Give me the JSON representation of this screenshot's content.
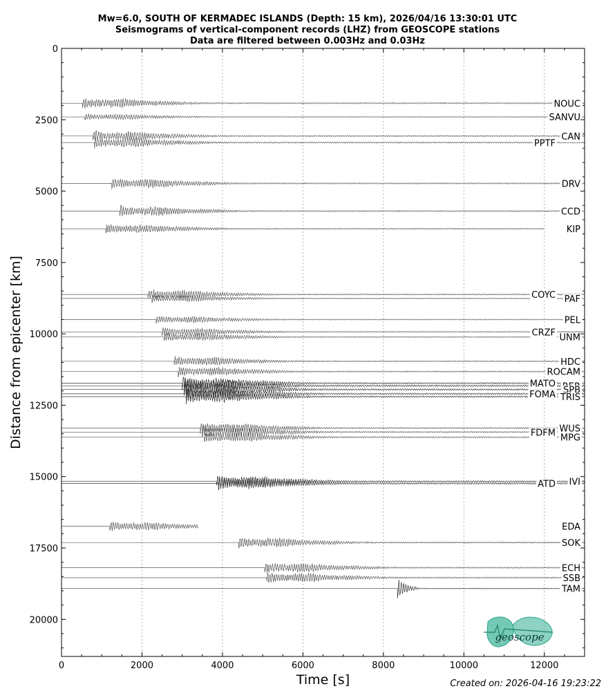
{
  "chart_data": {
    "type": "seismogram",
    "title_lines": [
      "Mw=6.0, SOUTH OF KERMADEC ISLANDS (Depth: 15 km), 2026/04/16 13:30:01 UTC",
      "Seismograms of vertical-component records (LHZ) from GEOSCOPE stations",
      "Data are filtered between 0.003Hz and 0.03Hz"
    ],
    "xlabel": "Time [s]",
    "ylabel": "Distance from epicenter [km]",
    "xlim": [
      0,
      13000
    ],
    "ylim": [
      21300,
      0
    ],
    "xticks": [
      0,
      2000,
      4000,
      6000,
      8000,
      10000,
      12000
    ],
    "yticks": [
      0,
      2500,
      5000,
      7500,
      10000,
      12500,
      15000,
      17500,
      20000
    ],
    "grid": "vertical dotted",
    "traces": [
      {
        "station": "NOUC",
        "distance": 1920,
        "arrival": 520,
        "end": 13000,
        "amp": 1,
        "label_side": "right"
      },
      {
        "station": "SANVU",
        "distance": 2400,
        "arrival": 580,
        "end": 13000,
        "amp": 0.6,
        "label_side": "right"
      },
      {
        "station": "CAN",
        "distance": 3070,
        "arrival": 780,
        "end": 13000,
        "amp": 1,
        "label_side": "right"
      },
      {
        "station": "PPTF",
        "distance": 3300,
        "arrival": 820,
        "end": 13000,
        "amp": 1,
        "label_side": "left"
      },
      {
        "station": "DRV",
        "distance": 4730,
        "arrival": 1250,
        "end": 13000,
        "amp": 1,
        "label_side": "right"
      },
      {
        "station": "CCD",
        "distance": 5700,
        "arrival": 1450,
        "end": 13000,
        "amp": 1,
        "label_side": "right"
      },
      {
        "station": "KIP",
        "distance": 6320,
        "arrival": 1100,
        "end": 12000,
        "amp": 0.9,
        "label_side": "right"
      },
      {
        "station": "COYC",
        "distance": 8620,
        "arrival": 2150,
        "end": 13000,
        "amp": 0.9,
        "label_side": "left"
      },
      {
        "station": "PAF",
        "distance": 8760,
        "arrival": 2250,
        "end": 13000,
        "amp": 0.7,
        "label_side": "right"
      },
      {
        "station": "PEL",
        "distance": 9500,
        "arrival": 2350,
        "end": 13000,
        "amp": 0.7,
        "label_side": "right"
      },
      {
        "station": "CRZF",
        "distance": 9930,
        "arrival": 2500,
        "end": 13000,
        "amp": 0.8,
        "label_side": "left"
      },
      {
        "station": "UNM",
        "distance": 10110,
        "arrival": 2550,
        "end": 13000,
        "amp": 0.8,
        "label_side": "right"
      },
      {
        "station": "HDC",
        "distance": 10960,
        "arrival": 2800,
        "end": 13000,
        "amp": 0.9,
        "label_side": "right"
      },
      {
        "station": "ROCAM",
        "distance": 11320,
        "arrival": 2900,
        "end": 13000,
        "amp": 0.9,
        "label_side": "right"
      },
      {
        "station": "MATO",
        "distance": 11730,
        "arrival": 3000,
        "end": 13000,
        "amp": 1.2,
        "label_side": "left"
      },
      {
        "station": "RER",
        "distance": 11820,
        "arrival": 3050,
        "end": 13000,
        "amp": 1.3,
        "label_side": "right"
      },
      {
        "station": "SPB",
        "distance": 11950,
        "arrival": 3050,
        "end": 13000,
        "amp": 1.3,
        "label_side": "right"
      },
      {
        "station": "FOMA",
        "distance": 12100,
        "arrival": 3100,
        "end": 13000,
        "amp": 1.2,
        "label_side": "left"
      },
      {
        "station": "TRIS",
        "distance": 12200,
        "arrival": 3100,
        "end": 13000,
        "amp": 1.2,
        "label_side": "right"
      },
      {
        "station": "WUS",
        "distance": 13300,
        "arrival": 3450,
        "end": 13000,
        "amp": 1,
        "label_side": "right"
      },
      {
        "station": "FDFM",
        "distance": 13440,
        "arrival": 3500,
        "end": 13000,
        "amp": 1,
        "label_side": "left"
      },
      {
        "station": "MPG",
        "distance": 13620,
        "arrival": 3550,
        "end": 13000,
        "amp": 1,
        "label_side": "right"
      },
      {
        "station": "IVI",
        "distance": 15170,
        "arrival": 3850,
        "end": 13000,
        "amp": 1.2,
        "label_side": "right"
      },
      {
        "station": "ATD",
        "distance": 15240,
        "arrival": 3900,
        "end": 13000,
        "amp": 1.2,
        "label_side": "left"
      },
      {
        "station": "EDA",
        "distance": 16740,
        "arrival": 1200,
        "end": 3400,
        "amp": 0.9,
        "label_side": "right"
      },
      {
        "station": "SOK",
        "distance": 17310,
        "arrival": 4400,
        "end": 13000,
        "amp": 1,
        "label_side": "right"
      },
      {
        "station": "ECH",
        "distance": 18190,
        "arrival": 5050,
        "end": 13000,
        "amp": 1,
        "label_side": "right"
      },
      {
        "station": "SSB",
        "distance": 18540,
        "arrival": 5100,
        "end": 13000,
        "amp": 1,
        "label_side": "right"
      },
      {
        "station": "TAM",
        "distance": 18920,
        "arrival": 8350,
        "end": 13000,
        "amp": 1.5,
        "label_side": "right"
      }
    ]
  },
  "logo": {
    "text": "geoscope",
    "color": "#2aa58c"
  },
  "footer": {
    "created": "Created on: 2026-04-16 19:23:22"
  }
}
